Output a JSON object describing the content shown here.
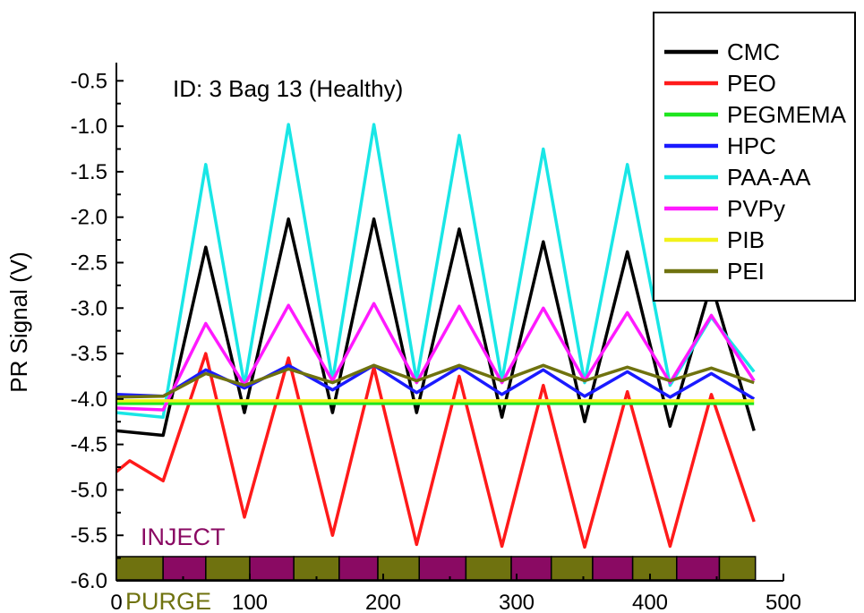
{
  "chart_data": {
    "type": "line",
    "annotation": "ID: 3  Bag 13  (Healthy)",
    "ylabel": "PR Signal (V)",
    "xlabel": "",
    "xlim": [
      0,
      500
    ],
    "ylim": [
      -6.0,
      -0.3
    ],
    "x_ticks": [
      0,
      100,
      200,
      300,
      400,
      500
    ],
    "y_ticks": [
      "-0.5",
      "-1.0",
      "-1.5",
      "-2.0",
      "-2.5",
      "-3.0",
      "-3.5",
      "-4.0",
      "-4.5",
      "-5.0",
      "-5.5",
      "-6.0"
    ],
    "grid": false,
    "legend_position": "top-right",
    "inject_label": "INJECT",
    "purge_label": "PURGE",
    "inject_color": "#8a0a63",
    "purge_color": "#6f720f",
    "segments": [
      {
        "start": 0,
        "end": 35,
        "phase": "purge"
      },
      {
        "start": 35,
        "end": 67,
        "phase": "inject"
      },
      {
        "start": 67,
        "end": 100,
        "phase": "purge"
      },
      {
        "start": 100,
        "end": 133,
        "phase": "inject"
      },
      {
        "start": 133,
        "end": 167,
        "phase": "purge"
      },
      {
        "start": 167,
        "end": 196,
        "phase": "inject"
      },
      {
        "start": 196,
        "end": 227,
        "phase": "purge"
      },
      {
        "start": 227,
        "end": 262,
        "phase": "inject"
      },
      {
        "start": 262,
        "end": 296,
        "phase": "purge"
      },
      {
        "start": 296,
        "end": 326,
        "phase": "inject"
      },
      {
        "start": 326,
        "end": 357,
        "phase": "purge"
      },
      {
        "start": 357,
        "end": 387,
        "phase": "inject"
      },
      {
        "start": 387,
        "end": 420,
        "phase": "purge"
      },
      {
        "start": 420,
        "end": 452,
        "phase": "inject"
      },
      {
        "start": 452,
        "end": 479,
        "phase": "purge"
      }
    ],
    "series": [
      {
        "name": "CMC",
        "color": "#000000",
        "x": [
          0,
          35,
          67,
          96,
          129,
          162,
          193,
          225,
          257,
          289,
          320,
          351,
          383,
          415,
          446,
          478
        ],
        "y": [
          -4.35,
          -4.4,
          -2.33,
          -4.15,
          -2.02,
          -4.15,
          -2.02,
          -4.15,
          -2.13,
          -4.2,
          -2.27,
          -4.25,
          -2.38,
          -4.3,
          -2.73,
          -4.35
        ]
      },
      {
        "name": "PEO",
        "color": "#ff1a1a",
        "x": [
          0,
          10,
          35,
          67,
          96,
          129,
          162,
          193,
          225,
          257,
          289,
          320,
          351,
          383,
          415,
          446,
          478
        ],
        "y": [
          -4.8,
          -4.68,
          -4.9,
          -3.5,
          -5.3,
          -3.55,
          -5.5,
          -3.65,
          -5.6,
          -3.75,
          -5.62,
          -3.85,
          -5.63,
          -3.92,
          -5.62,
          -3.95,
          -5.35
        ]
      },
      {
        "name": "PEGMEMA",
        "color": "#1fe51f",
        "x": [
          0,
          478
        ],
        "y": [
          -4.05,
          -4.05
        ]
      },
      {
        "name": "HPC",
        "color": "#1a1aff",
        "x": [
          0,
          35,
          67,
          96,
          129,
          162,
          193,
          225,
          257,
          289,
          320,
          351,
          383,
          415,
          446,
          478
        ],
        "y": [
          -3.95,
          -3.97,
          -3.68,
          -3.88,
          -3.63,
          -3.9,
          -3.63,
          -3.93,
          -3.65,
          -3.95,
          -3.68,
          -3.97,
          -3.7,
          -3.98,
          -3.72,
          -4.0
        ]
      },
      {
        "name": "PAA-AA",
        "color": "#19e6e6",
        "x": [
          0,
          35,
          67,
          96,
          129,
          162,
          193,
          225,
          257,
          289,
          320,
          351,
          383,
          415,
          446,
          478
        ],
        "y": [
          -4.15,
          -4.2,
          -1.42,
          -3.85,
          -0.98,
          -3.8,
          -0.98,
          -3.8,
          -1.1,
          -3.8,
          -1.25,
          -3.82,
          -1.42,
          -3.85,
          -3.1,
          -3.7
        ]
      },
      {
        "name": "PVPy",
        "color": "#ff1aff",
        "x": [
          0,
          35,
          67,
          96,
          129,
          162,
          193,
          225,
          257,
          289,
          320,
          351,
          383,
          415,
          446,
          478
        ],
        "y": [
          -4.1,
          -4.12,
          -3.17,
          -3.85,
          -2.97,
          -3.8,
          -2.95,
          -3.82,
          -2.98,
          -3.82,
          -3.0,
          -3.8,
          -3.05,
          -3.82,
          -3.08,
          -3.8
        ]
      },
      {
        "name": "PIB",
        "color": "#f2f21a",
        "x": [
          0,
          478
        ],
        "y": [
          -4.02,
          -4.02
        ]
      },
      {
        "name": "PEI",
        "color": "#6f720f",
        "x": [
          0,
          35,
          67,
          96,
          129,
          162,
          193,
          225,
          257,
          289,
          320,
          351,
          383,
          415,
          446,
          478
        ],
        "y": [
          -3.98,
          -3.97,
          -3.72,
          -3.85,
          -3.67,
          -3.82,
          -3.63,
          -3.8,
          -3.63,
          -3.8,
          -3.63,
          -3.8,
          -3.65,
          -3.8,
          -3.66,
          -3.82
        ]
      }
    ]
  }
}
